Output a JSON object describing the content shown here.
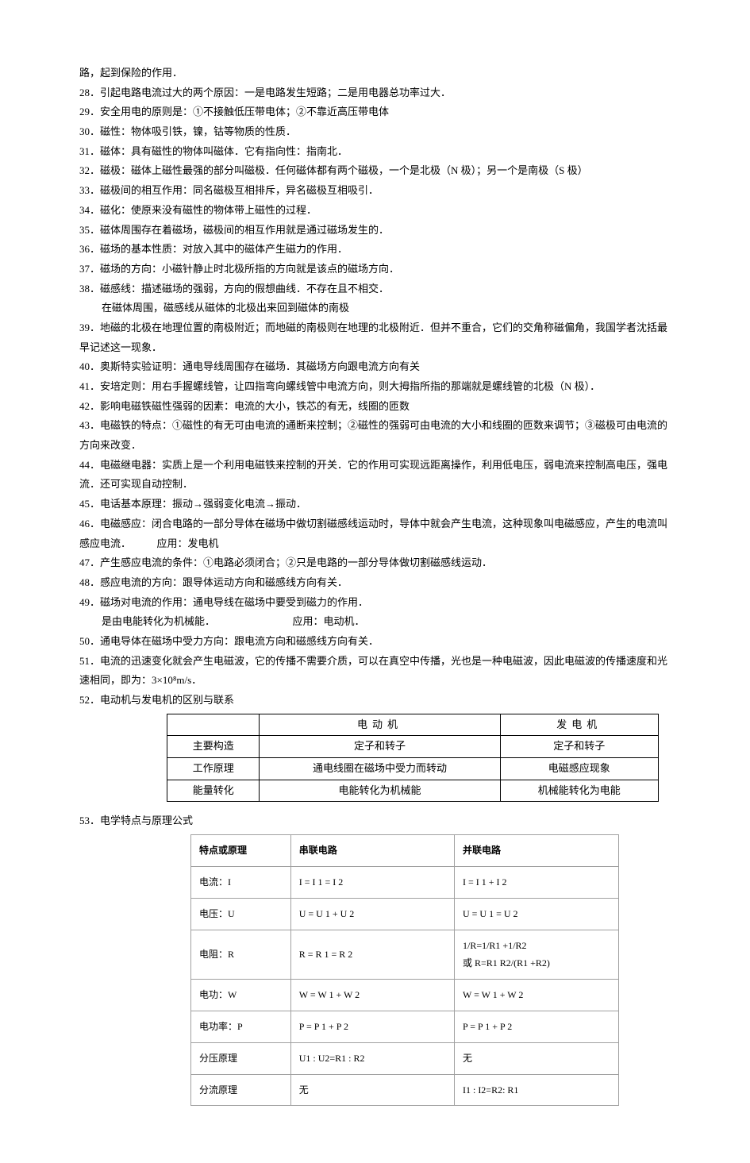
{
  "lines": {
    "l1": "路，起到保险的作用．",
    "l2": "28．引起电路电流过大的两个原因：一是电路发生短路；二是用电器总功率过大．",
    "l3": "29．安全用电的原则是：①不接触低压带电体；②不靠近高压带电体",
    "l4": "30．磁性：物体吸引铁，镍，钴等物质的性质．",
    "l5": "31．磁体：具有磁性的物体叫磁体．它有指向性：指南北．",
    "l6": "32．磁极：磁体上磁性最强的部分叫磁极．任何磁体都有两个磁极，一个是北极（N 极）；另一个是南极（S 极）",
    "l7": "33．磁极间的相互作用：同名磁极互相排斥，异名磁极互相吸引．",
    "l8": "34．磁化：使原来没有磁性的物体带上磁性的过程．",
    "l9": "35．磁体周围存在着磁场，磁极间的相互作用就是通过磁场发生的．",
    "l10": "36．磁场的基本性质：对放入其中的磁体产生磁力的作用．",
    "l11": "37．磁场的方向：小磁针静止时北极所指的方向就是该点的磁场方向．",
    "l12": "38．磁感线：描述磁场的强弱，方向的假想曲线．不存在且不相交．",
    "l12b": "在磁体周围，磁感线从磁体的北极出来回到磁体的南极",
    "l13": "39．地磁的北极在地理位置的南极附近；而地磁的南极则在地理的北极附近．但并不重合，它们的交角称磁偏角，我国学者沈括最早记述这一现象．",
    "l14": "40．奥斯特实验证明：通电导线周围存在磁场．其磁场方向跟电流方向有关",
    "l15": "41．安培定则：用右手握螺线管，让四指弯向螺线管中电流方向，则大拇指所指的那端就是螺线管的北极（N 极）．",
    "l16": "42．影响电磁铁磁性强弱的因素：电流的大小，铁芯的有无，线圈的匝数",
    "l17": "43．电磁铁的特点：①磁性的有无可由电流的通断来控制；②磁性的强弱可由电流的大小和线圈的匝数来调节；③磁极可由电流的方向来改变．",
    "l18": "44．电磁继电器：实质上是一个利用电磁铁来控制的开关．它的作用可实现远距离操作，利用低电压，弱电流来控制高电压，强电流．还可实现自动控制．",
    "l19": "45．电话基本原理：振动→强弱变化电流→振动．",
    "l20": "46．电磁感应：闭合电路的一部分导体在磁场中做切割磁感线运动时，导体中就会产生电流，这种现象叫电磁感应，产生的电流叫感应电流．　　　应用：发电机",
    "l21": "47．产生感应电流的条件：①电路必须闭合；②只是电路的一部分导体做切割磁感线运动．",
    "l22": "48．感应电流的方向：跟导体运动方向和磁感线方向有关．",
    "l23": "49．磁场对电流的作用：通电导线在磁场中要受到磁力的作用．",
    "l23b": "是由电能转化为机械能．　　　　　　　　应用：电动机．",
    "l24": "50．通电导体在磁场中受力方向：跟电流方向和磁感线方向有关．",
    "l25": "51．电流的迅速变化就会产生电磁波，它的传播不需要介质，可以在真空中传播，光也是一种电磁波，因此电磁波的传播速度和光速相同，即为：3×10⁸m/s．",
    "l26": "52．电动机与发电机的区别与联系",
    "l27": "53．电学特点与原理公式"
  },
  "table1": {
    "headers": [
      "",
      "电动机",
      "发电机"
    ],
    "rows": [
      [
        "主要构造",
        "定子和转子",
        "定子和转子"
      ],
      [
        "工作原理",
        "通电线圈在磁场中受力而转动",
        "电磁感应现象"
      ],
      [
        "能量转化",
        "电能转化为机械能",
        "机械能转化为电能"
      ]
    ]
  },
  "table2": {
    "headers": [
      "特点或原理",
      "串联电路",
      "并联电路"
    ],
    "rows": [
      [
        "电流：I",
        "I = I 1 = I 2",
        "I = I 1 + I 2"
      ],
      [
        "电压：U",
        "U = U 1 + U 2",
        "U = U 1 = U 2"
      ],
      [
        "电阻：R",
        "R = R 1 = R 2",
        "1/R=1/R1 +1/R2\n或 R=R1 R2/(R1 +R2)"
      ],
      [
        "电功：W",
        "W = W 1 + W 2",
        "W = W 1 + W 2"
      ],
      [
        "电功率：P",
        "P = P 1 + P 2",
        "P = P 1 + P 2"
      ],
      [
        "分压原理",
        "U1 : U2=R1 : R2",
        "无"
      ],
      [
        "分流原理",
        "无",
        "I1 : I2=R2: R1"
      ]
    ]
  }
}
